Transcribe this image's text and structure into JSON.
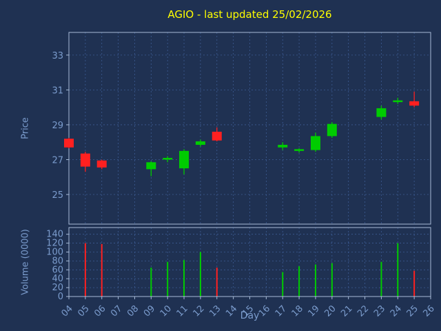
{
  "colors": {
    "background": "#1f3152",
    "title": "#ffff00",
    "label": "#7b9ccd",
    "grid": "#3d5c94",
    "frame": "#a8bcd8",
    "up": "#00cc00",
    "down": "#ff2020"
  },
  "chart_data": {
    "type": "candlestick",
    "title": "AGIO - last updated 25/02/2026",
    "xlabel": "Day",
    "ylabel_price": "Price",
    "ylabel_volume": "Volume (0000)",
    "x_ticks": [
      "04",
      "05",
      "06",
      "07",
      "08",
      "09",
      "10",
      "11",
      "12",
      "13",
      "14",
      "15",
      "16",
      "17",
      "18",
      "19",
      "20",
      "21",
      "22",
      "23",
      "24",
      "25",
      "26"
    ],
    "price_ticks": [
      25,
      27,
      29,
      31,
      33
    ],
    "price_domain": [
      23.3,
      34.3
    ],
    "volume_ticks": [
      0,
      20,
      40,
      60,
      80,
      100,
      120,
      140
    ],
    "volume_domain": [
      0,
      155
    ],
    "grid": true,
    "legend": "none",
    "candles": [
      {
        "day": 4,
        "open": 28.2,
        "high": 28.25,
        "low": 27.65,
        "close": 27.7,
        "volume": 0
      },
      {
        "day": 5,
        "open": 27.35,
        "high": 27.45,
        "low": 26.3,
        "close": 26.6,
        "volume": 120
      },
      {
        "day": 6,
        "open": 26.95,
        "high": 27.0,
        "low": 26.45,
        "close": 26.55,
        "volume": 118
      },
      {
        "day": 9,
        "open": 26.45,
        "high": 26.9,
        "low": 26.05,
        "close": 26.85,
        "volume": 65
      },
      {
        "day": 10,
        "open": 27.0,
        "high": 27.2,
        "low": 26.85,
        "close": 27.1,
        "volume": 78
      },
      {
        "day": 11,
        "open": 26.5,
        "high": 27.6,
        "low": 26.15,
        "close": 27.5,
        "volume": 82
      },
      {
        "day": 12,
        "open": 27.85,
        "high": 28.15,
        "low": 27.75,
        "close": 28.05,
        "volume": 100
      },
      {
        "day": 13,
        "open": 28.6,
        "high": 28.85,
        "low": 28.05,
        "close": 28.1,
        "volume": 65
      },
      {
        "day": 17,
        "open": 27.7,
        "high": 28.0,
        "low": 27.55,
        "close": 27.85,
        "volume": 55
      },
      {
        "day": 18,
        "open": 27.5,
        "high": 27.65,
        "low": 27.4,
        "close": 27.6,
        "volume": 68
      },
      {
        "day": 19,
        "open": 27.55,
        "high": 28.55,
        "low": 27.45,
        "close": 28.35,
        "volume": 72
      },
      {
        "day": 20,
        "open": 28.35,
        "high": 29.15,
        "low": 28.25,
        "close": 29.05,
        "volume": 75
      },
      {
        "day": 23,
        "open": 29.45,
        "high": 30.1,
        "low": 29.3,
        "close": 29.95,
        "volume": 78
      },
      {
        "day": 24,
        "open": 30.3,
        "high": 30.55,
        "low": 30.2,
        "close": 30.4,
        "volume": 120
      },
      {
        "day": 25,
        "open": 30.35,
        "high": 30.9,
        "low": 30.0,
        "close": 30.1,
        "volume": 58
      }
    ]
  }
}
